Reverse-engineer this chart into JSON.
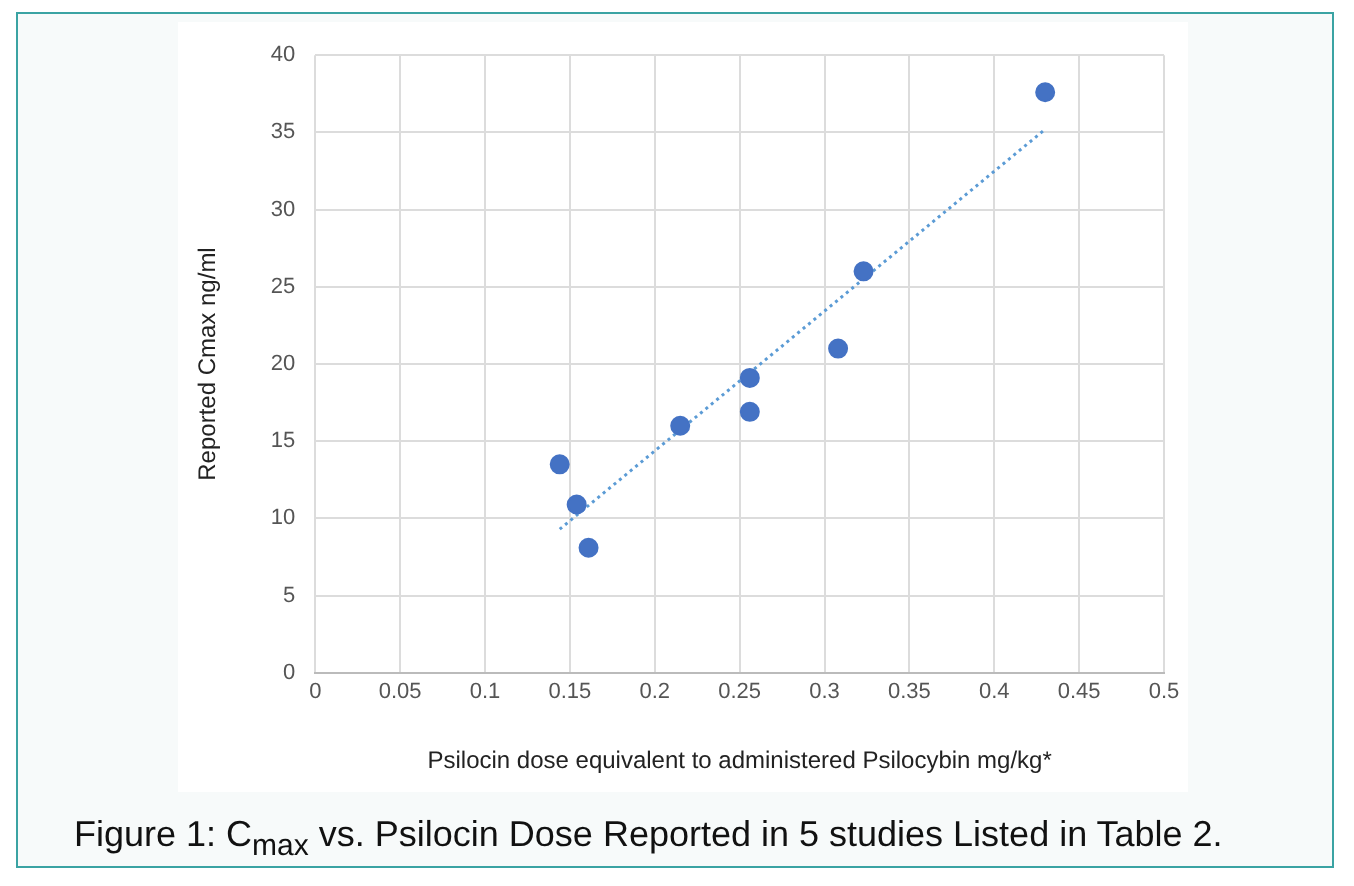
{
  "chart_data": {
    "type": "scatter",
    "title": "Figure 1: C$_{max}$ vs. Psilocin Dose Reported in 5 studies Listed in Table 2.",
    "xlabel": "Psilocin dose equivalent to administered Psilocybin mg/kg*",
    "ylabel": "Reported Cmax ng/ml",
    "series": [
      {
        "type": "scatter",
        "color": "#4472c4",
        "marker": "circle",
        "x": [
          0.144,
          0.154,
          0.161,
          0.215,
          0.256,
          0.256,
          0.308,
          0.323,
          0.43
        ],
        "values": [
          13.5,
          10.9,
          8.1,
          16.0,
          19.1,
          16.9,
          21.0,
          26.0,
          37.6
        ]
      },
      {
        "type": "line",
        "color": "#5b9bd5",
        "marker": "none",
        "line_style": "dotted",
        "x": [
          0.144,
          0.43
        ],
        "values": [
          9.3,
          35.2
        ]
      }
    ],
    "xlim": [
      0,
      0.5
    ],
    "xticks": [
      0,
      0.05,
      0.1,
      0.15,
      0.2,
      0.25,
      0.3,
      0.35,
      0.4,
      0.45,
      0.5
    ],
    "ylim": [
      0,
      40
    ],
    "yticks": [
      0,
      5,
      10,
      15,
      20,
      25,
      30,
      35,
      40
    ],
    "grid": true,
    "legend": false
  }
}
